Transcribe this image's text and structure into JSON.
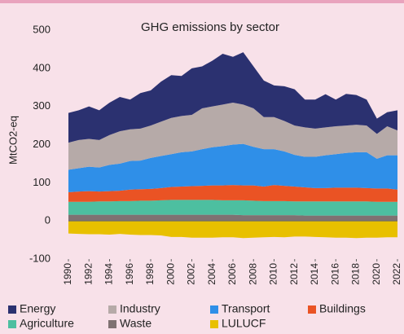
{
  "chart_data": {
    "type": "stacked_area",
    "title": "GHG emissions by sector",
    "y_label": "MtCO2-eq",
    "x": [
      1990,
      1991,
      1992,
      1993,
      1994,
      1995,
      1996,
      1997,
      1998,
      1999,
      2000,
      2001,
      2002,
      2003,
      2004,
      2005,
      2006,
      2007,
      2008,
      2009,
      2010,
      2011,
      2012,
      2013,
      2014,
      2015,
      2016,
      2017,
      2018,
      2019,
      2020,
      2021,
      2022
    ],
    "xlim": [
      1990,
      2022
    ],
    "xticks": [
      1990,
      1992,
      1994,
      1996,
      1998,
      2000,
      2002,
      2004,
      2006,
      2008,
      2010,
      2012,
      2014,
      2016,
      2018,
      2020,
      2022
    ],
    "ylim": [
      -100,
      500
    ],
    "yticks": [
      -100,
      0,
      100,
      200,
      300,
      400,
      500
    ],
    "legend": "bottom",
    "series": [
      {
        "name": "Energy",
        "color": "#2b3170",
        "values": [
          78,
          78,
          85,
          78,
          85,
          90,
          78,
          93,
          92,
          105,
          112,
          105,
          122,
          110,
          120,
          133,
          120,
          137,
          110,
          96,
          83,
          91,
          95,
          73,
          76,
          87,
          70,
          83,
          78,
          68,
          40,
          37,
          53
        ]
      },
      {
        "name": "Industry",
        "color": "#b6aaa8",
        "values": [
          71,
          74,
          73,
          72,
          78,
          85,
          83,
          84,
          85,
          90,
          95,
          95,
          96,
          107,
          107,
          109,
          110,
          103,
          101,
          84,
          84,
          80,
          77,
          77,
          74,
          73,
          73,
          72,
          72,
          70,
          65,
          76,
          65
        ]
      },
      {
        "name": "Transport",
        "color": "#2f8fe8",
        "values": [
          59,
          61,
          64,
          63,
          69,
          71,
          75,
          75,
          81,
          84,
          86,
          90,
          91,
          96,
          100,
          103,
          106,
          109,
          101,
          98,
          94,
          90,
          83,
          80,
          82,
          86,
          88,
          91,
          93,
          94,
          78,
          87,
          90
        ]
      },
      {
        "name": "Buildings",
        "color": "#ea5324",
        "values": [
          25,
          27,
          28,
          26,
          27,
          27,
          30,
          30,
          31,
          32,
          34,
          35,
          36,
          37,
          38,
          39,
          40,
          39,
          40,
          38,
          42,
          40,
          39,
          37,
          35,
          35,
          36,
          36,
          36,
          35,
          35,
          35,
          32
        ]
      },
      {
        "name": "Agriculture",
        "color": "#4dbfa0",
        "values": [
          34,
          34,
          34,
          35,
          35,
          36,
          36,
          37,
          37,
          38,
          39,
          39,
          39,
          39,
          39,
          38,
          38,
          39,
          38,
          37,
          37,
          37,
          36,
          37,
          37,
          37,
          37,
          37,
          37,
          37,
          36,
          36,
          36
        ]
      },
      {
        "name": "Waste",
        "color": "#7f7272",
        "values": [
          16,
          16,
          16,
          16,
          16,
          16,
          16,
          16,
          16,
          16,
          16,
          16,
          16,
          16,
          16,
          16,
          16,
          15,
          15,
          15,
          15,
          15,
          15,
          14,
          14,
          14,
          14,
          14,
          14,
          14,
          14,
          14,
          14
        ]
      },
      {
        "name": "LULUCF",
        "color": "#e8c000",
        "values": [
          -33,
          -34,
          -35,
          -35,
          -36,
          -34,
          -36,
          -37,
          -37,
          -38,
          -42,
          -42,
          -44,
          -44,
          -44,
          -43,
          -43,
          -45,
          -44,
          -43,
          -42,
          -43,
          -41,
          -41,
          -42,
          -43,
          -44,
          -44,
          -45,
          -44,
          -44,
          -43,
          -43
        ]
      }
    ]
  }
}
